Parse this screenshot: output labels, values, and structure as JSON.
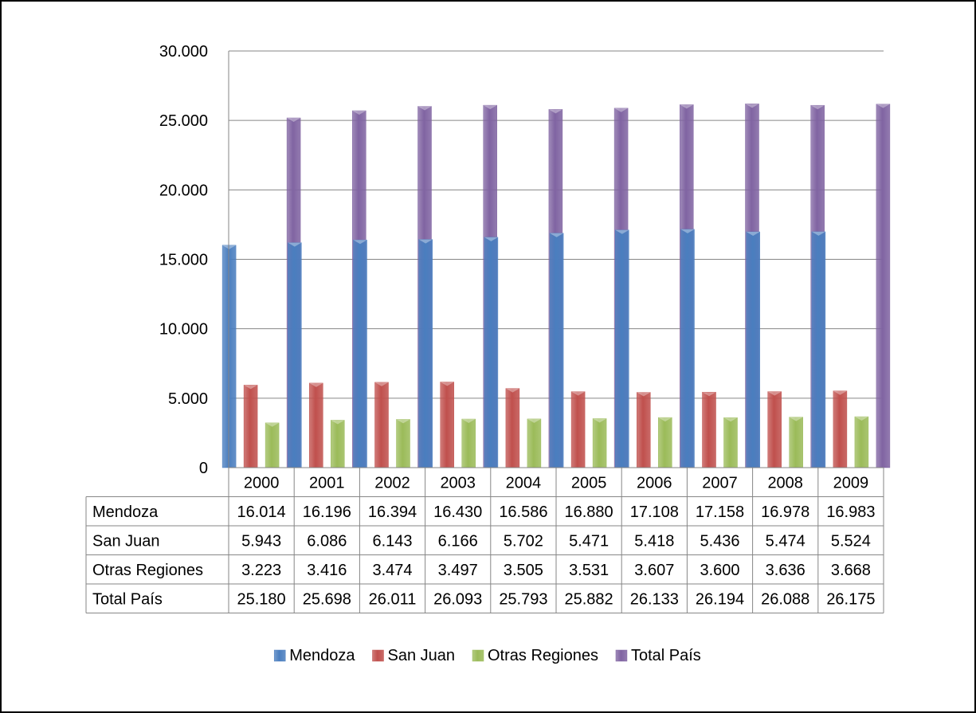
{
  "chart_data": {
    "type": "bar",
    "title": "",
    "xlabel": "",
    "ylabel": "",
    "ylim": [
      0,
      30000
    ],
    "yticks": [
      0,
      5000,
      10000,
      15000,
      20000,
      25000,
      30000
    ],
    "ytick_labels": [
      "0",
      "5.000",
      "10.000",
      "15.000",
      "20.000",
      "25.000",
      "30.000"
    ],
    "grid": true,
    "legend_position": "bottom",
    "categories": [
      "2000",
      "2001",
      "2002",
      "2003",
      "2004",
      "2005",
      "2006",
      "2007",
      "2008",
      "2009"
    ],
    "series": [
      {
        "name": "Mendoza",
        "color": "#4a7ebf",
        "values": [
          16014,
          16196,
          16394,
          16430,
          16586,
          16880,
          17108,
          17158,
          16978,
          16983
        ],
        "labels": [
          "16.014",
          "16.196",
          "16.394",
          "16.430",
          "16.586",
          "16.880",
          "17.108",
          "17.158",
          "16.978",
          "16.983"
        ]
      },
      {
        "name": "San Juan",
        "color": "#c0504d",
        "values": [
          5943,
          6086,
          6143,
          6166,
          5702,
          5471,
          5418,
          5436,
          5474,
          5524
        ],
        "labels": [
          "5.943",
          "6.086",
          "6.143",
          "6.166",
          "5.702",
          "5.471",
          "5.418",
          "5.436",
          "5.474",
          "5.524"
        ]
      },
      {
        "name": "Otras Regiones",
        "color": "#9bbb59",
        "values": [
          3223,
          3416,
          3474,
          3497,
          3505,
          3531,
          3607,
          3600,
          3636,
          3668
        ],
        "labels": [
          "3.223",
          "3.416",
          "3.474",
          "3.497",
          "3.505",
          "3.531",
          "3.607",
          "3.600",
          "3.636",
          "3.668"
        ]
      },
      {
        "name": "Total País",
        "color": "#8064a2",
        "values": [
          25180,
          25698,
          26011,
          26093,
          25793,
          25882,
          26133,
          26194,
          26088,
          26175
        ],
        "labels": [
          "25.180",
          "25.698",
          "26.011",
          "26.093",
          "25.793",
          "25.882",
          "26.133",
          "26.194",
          "26.088",
          "26.175"
        ]
      }
    ]
  }
}
